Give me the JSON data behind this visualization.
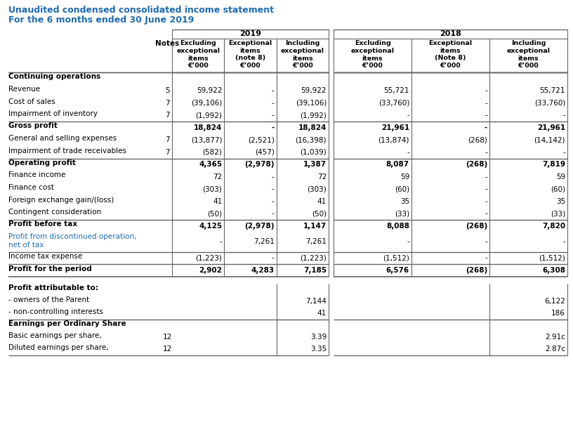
{
  "title_line1": "Unaudited condensed consolidated income statement",
  "title_line2": "For the 6 months ended 30 June 2019",
  "title_color": "#1F6BB0",
  "col_headers": [
    "Excluding\nexceptional\nitems\n€’000",
    "Exceptional\nitems\n(note 8)\n€’000",
    "Including\nexceptional\nitems\n€’000",
    "Excluding\nexceptional\nitems\n€’000",
    "Exceptional\nitems\n(Note 8)\n€’000",
    "Including\nexceptional\nitems\n€’000"
  ],
  "rows": [
    {
      "label": "Continuing operations",
      "bold": true,
      "note": "",
      "vals": [
        "",
        "",
        "",
        "",
        "",
        ""
      ],
      "sep_above": true,
      "blue": false,
      "tall": false
    },
    {
      "label": "Revenue",
      "bold": false,
      "note": "5",
      "vals": [
        "59,922",
        "-",
        "59,922",
        "55,721",
        "-",
        "55,721"
      ],
      "sep_above": false,
      "blue": false,
      "tall": false
    },
    {
      "label": "Cost of sales",
      "bold": false,
      "note": "7",
      "vals": [
        "(39,106)",
        "-",
        "(39,106)",
        "(33,760)",
        "-",
        "(33,760)"
      ],
      "sep_above": false,
      "blue": false,
      "tall": false
    },
    {
      "label": "Impairment of inventory",
      "bold": false,
      "note": "7",
      "vals": [
        "(1,992)",
        "-",
        "(1,992)",
        "-",
        "-",
        "-"
      ],
      "sep_above": false,
      "blue": false,
      "tall": false
    },
    {
      "label": "Gross profit",
      "bold": true,
      "note": "",
      "vals": [
        "18,824",
        "-",
        "18,824",
        "21,961",
        "-",
        "21,961"
      ],
      "sep_above": true,
      "blue": false,
      "tall": false
    },
    {
      "label": "General and selling expenses",
      "bold": false,
      "note": "7",
      "vals": [
        "(13,877)",
        "(2,521)",
        "(16,398)",
        "(13,874)",
        "(268)",
        "(14,142)"
      ],
      "sep_above": false,
      "blue": false,
      "tall": false
    },
    {
      "label": "Impairment of trade receivables",
      "bold": false,
      "note": "7",
      "vals": [
        "(582)",
        "(457)",
        "(1,039)",
        "-",
        "-",
        "-"
      ],
      "sep_above": false,
      "blue": false,
      "tall": false
    },
    {
      "label": "Operating profit",
      "bold": true,
      "note": "",
      "vals": [
        "4,365",
        "(2,978)",
        "1,387",
        "8,087",
        "(268)",
        "7,819"
      ],
      "sep_above": true,
      "blue": false,
      "tall": false
    },
    {
      "label": "Finance income",
      "bold": false,
      "note": "",
      "vals": [
        "72",
        "-",
        "72",
        "59",
        "-",
        "59"
      ],
      "sep_above": false,
      "blue": false,
      "tall": false
    },
    {
      "label": "Finance cost",
      "bold": false,
      "note": "",
      "vals": [
        "(303)",
        "-",
        "(303)",
        "(60)",
        "-",
        "(60)"
      ],
      "sep_above": false,
      "blue": false,
      "tall": false
    },
    {
      "label": "Foreign exchange gain/(loss)",
      "bold": false,
      "note": "",
      "vals": [
        "41",
        "-",
        "41",
        "35",
        "-",
        "35"
      ],
      "sep_above": false,
      "blue": false,
      "tall": false
    },
    {
      "label": "Contingent consideration",
      "bold": false,
      "note": "",
      "vals": [
        "(50)",
        "-",
        "(50)",
        "(33)",
        "-",
        "(33)"
      ],
      "sep_above": false,
      "blue": false,
      "tall": false
    },
    {
      "label": "Profit before tax",
      "bold": true,
      "note": "",
      "vals": [
        "4,125",
        "(2,978)",
        "1,147",
        "8,088",
        "(268)",
        "7,820"
      ],
      "sep_above": true,
      "blue": false,
      "tall": false
    },
    {
      "label": "Profit from discontinued operation,\nnet of tax",
      "bold": false,
      "note": "",
      "vals": [
        "-",
        "7,261",
        "7,261",
        "-",
        "-",
        "-"
      ],
      "sep_above": false,
      "blue": true,
      "tall": true
    },
    {
      "label": "Income tax expense",
      "bold": false,
      "note": "",
      "vals": [
        "(1,223)",
        "-",
        "(1,223)",
        "(1,512)",
        "-",
        "(1,512)"
      ],
      "sep_above": true,
      "blue": false,
      "tall": false
    },
    {
      "label": "Profit for the period",
      "bold": true,
      "note": "",
      "vals": [
        "2,902",
        "4,283",
        "7,185",
        "6,576",
        "(268)",
        "6,308"
      ],
      "sep_above": true,
      "blue": false,
      "tall": false
    }
  ],
  "bot_rows": [
    {
      "label": "Profit attributable to:",
      "bold": true,
      "note": "",
      "v19": "",
      "v18": "",
      "sep_above": false,
      "sep_col": false
    },
    {
      "label": "- owners of the Parent",
      "bold": false,
      "note": "",
      "v19": "7,144",
      "v18": "6,122",
      "sep_above": false,
      "sep_col": false
    },
    {
      "label": "- non-controlling interests",
      "bold": false,
      "note": "",
      "v19": "41",
      "v18": "186",
      "sep_above": false,
      "sep_col": false
    },
    {
      "label": "Earnings per Ordinary Share",
      "bold": true,
      "note": "",
      "v19": "",
      "v18": "",
      "sep_above": true,
      "sep_col": false
    },
    {
      "label": "Basic earnings per share,",
      "bold": false,
      "note": "12",
      "v19": "3.39",
      "v18": "2.91c",
      "sep_above": false,
      "sep_col": false
    },
    {
      "label": "Diluted earnings per share,",
      "bold": false,
      "note": "12",
      "v19": "3.35",
      "v18": "2.87c",
      "sep_above": false,
      "sep_col": false
    }
  ],
  "bg": "#FFFFFF",
  "line_color": "#666666",
  "blue_color": "#1F6BB0"
}
